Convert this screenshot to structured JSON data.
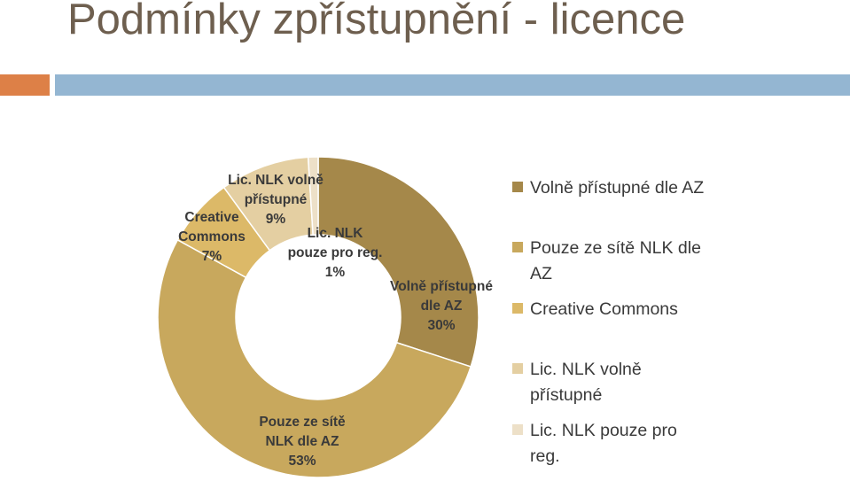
{
  "title": "Podmínky zpřístupnění - licence",
  "colors": {
    "accent_bar": "#dd8047",
    "main_bar": "#94b6d2",
    "title_text": "#6e5f4f"
  },
  "chart_data": {
    "type": "pie",
    "variant": "doughnut",
    "legend_position": "right",
    "slices": [
      {
        "name": "Volně přístupné dle AZ",
        "legend_label": "Volně přístupné dle AZ",
        "label_lines": [
          "Volně přístupné",
          "dle AZ"
        ],
        "value": 30,
        "value_label": "30%",
        "color": "#a5884a"
      },
      {
        "name": "Pouze ze sítě NLK dle AZ",
        "legend_label": "Pouze ze sítě NLK dle AZ",
        "label_lines": [
          "Pouze ze sítě",
          "NLK dle AZ"
        ],
        "value": 53,
        "value_label": "53%",
        "color": "#c8a85d"
      },
      {
        "name": "Creative Commons",
        "legend_label": "Creative Commons",
        "label_lines": [
          "Creative",
          "Commons"
        ],
        "value": 7,
        "value_label": "7%",
        "color": "#dcb968"
      },
      {
        "name": "Lic. NLK volně přístupné",
        "legend_label": "Lic. NLK volně přístupné",
        "label_lines": [
          "Lic. NLK volně",
          "přístupné"
        ],
        "value": 9,
        "value_label": "9%",
        "color": "#e4cfa2"
      },
      {
        "name": "Lic. NLK pouze pro reg.",
        "legend_label": "Lic. NLK pouze pro reg.",
        "label_lines": [
          "Lic. NLK",
          "pouze pro reg."
        ],
        "value": 1,
        "value_label": "1%",
        "color": "#ede0c8"
      }
    ]
  }
}
